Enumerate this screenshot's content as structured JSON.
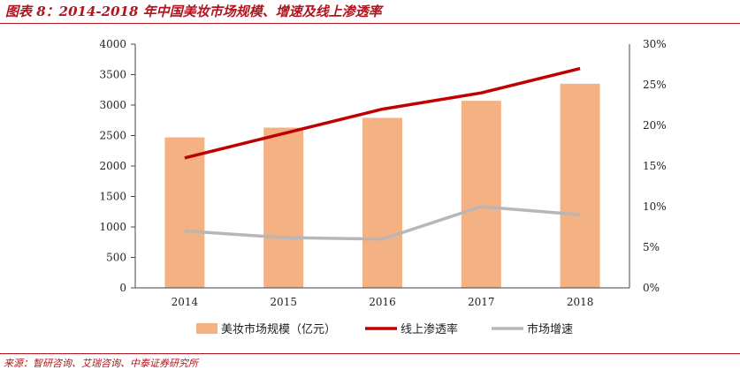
{
  "title": "图表 8：2014-2018 年中国美妆市场规模、增速及线上渗透率",
  "source": "来源：智研咨询、艾瑞咨询、中泰证券研究所",
  "chart_data": {
    "type": "bar",
    "categories": [
      "2014",
      "2015",
      "2016",
      "2017",
      "2018"
    ],
    "series": [
      {
        "name": "美妆市场规模（亿元）",
        "type": "bar",
        "axis": "left",
        "color": "#f4b183",
        "values": [
          2470,
          2630,
          2790,
          3070,
          3350
        ]
      },
      {
        "name": "线上渗透率",
        "type": "line",
        "axis": "right",
        "color": "#c00000",
        "values": [
          16.0,
          19.0,
          22.0,
          24.0,
          27.0
        ]
      },
      {
        "name": "市场增速",
        "type": "line",
        "axis": "right",
        "color": "#b7b7b7",
        "values": [
          7.0,
          6.2,
          6.0,
          10.0,
          9.0
        ]
      }
    ],
    "y_left": {
      "min": 0,
      "max": 4000,
      "ticks": [
        "0",
        "500",
        "1000",
        "1500",
        "2000",
        "2500",
        "3000",
        "3500",
        "4000"
      ]
    },
    "y_right": {
      "min": 0,
      "max": 30,
      "ticks": [
        "0%",
        "5%",
        "10%",
        "15%",
        "20%",
        "25%",
        "30%"
      ]
    },
    "grid": false,
    "legend_position": "bottom"
  }
}
